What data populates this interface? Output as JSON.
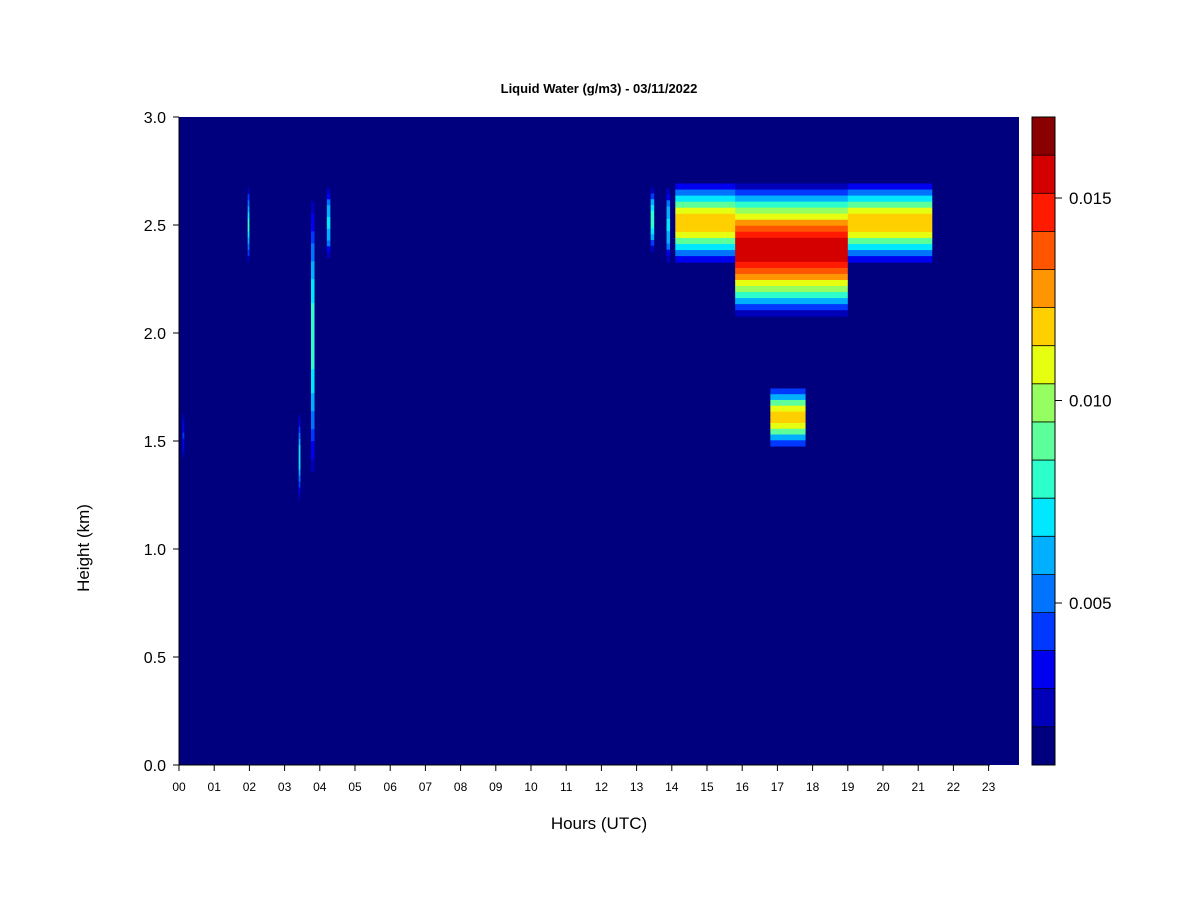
{
  "chart_data": {
    "type": "heatmap",
    "title": "Liquid Water (g/m3) - 03/11/2022",
    "xlabel": "Hours (UTC)",
    "ylabel": "Height (km)",
    "x_ticks": [
      "00",
      "01",
      "02",
      "03",
      "04",
      "05",
      "06",
      "07",
      "08",
      "09",
      "10",
      "11",
      "12",
      "13",
      "14",
      "15",
      "16",
      "17",
      "18",
      "19",
      "20",
      "21",
      "22",
      "23"
    ],
    "y_ticks": [
      "0.0",
      "0.5",
      "1.0",
      "1.5",
      "2.0",
      "2.5",
      "3.0"
    ],
    "xlim": [
      0,
      24
    ],
    "ylim": [
      0,
      3.0
    ],
    "colorbar": {
      "range": [
        0.001,
        0.017
      ],
      "tick_values": [
        0.005,
        0.01,
        0.015
      ],
      "tick_labels": [
        "0.005",
        "0.010",
        "0.015"
      ],
      "colors": [
        "#00007f",
        "#0000b8",
        "#0000f0",
        "#0038ff",
        "#0074ff",
        "#00b0ff",
        "#00e8ff",
        "#2cffcb",
        "#5dff9a",
        "#95ff62",
        "#e6ff11",
        "#ffcf00",
        "#ff9500",
        "#ff5500",
        "#ff1a00",
        "#d40000",
        "#8a0000"
      ]
    },
    "features": [
      {
        "hour_start": 14.1,
        "hour_end": 21.4,
        "height_bottom": 2.3,
        "height_top": 2.72,
        "peak_value": 0.012,
        "note": "upper cloud layer"
      },
      {
        "hour_start": 15.8,
        "hour_end": 19.0,
        "height_bottom": 2.05,
        "height_top": 2.72,
        "peak_value": 0.016,
        "note": "thick core"
      },
      {
        "hour_start": 16.8,
        "hour_end": 17.8,
        "height_bottom": 1.45,
        "height_top": 1.77,
        "peak_value": 0.0115,
        "note": "lower cloud layer"
      },
      {
        "hour_start": 1.95,
        "hour_end": 2.0,
        "height_bottom": 2.3,
        "height_top": 2.7,
        "peak_value": 0.008
      },
      {
        "hour_start": 3.75,
        "hour_end": 3.85,
        "height_bottom": 1.25,
        "height_top": 2.72,
        "peak_value": 0.008
      },
      {
        "hour_start": 4.2,
        "hour_end": 4.3,
        "height_bottom": 2.32,
        "height_top": 2.7,
        "peak_value": 0.007
      },
      {
        "hour_start": 3.4,
        "hour_end": 3.45,
        "height_bottom": 1.2,
        "height_top": 1.65,
        "peak_value": 0.007
      },
      {
        "hour_start": 13.4,
        "hour_end": 13.5,
        "height_bottom": 2.35,
        "height_top": 2.7,
        "peak_value": 0.008
      },
      {
        "hour_start": 13.85,
        "hour_end": 13.95,
        "height_bottom": 2.3,
        "height_top": 2.7,
        "peak_value": 0.007
      },
      {
        "hour_start": 0.1,
        "hour_end": 0.15,
        "height_bottom": 1.4,
        "height_top": 1.65,
        "peak_value": 0.004
      }
    ]
  }
}
